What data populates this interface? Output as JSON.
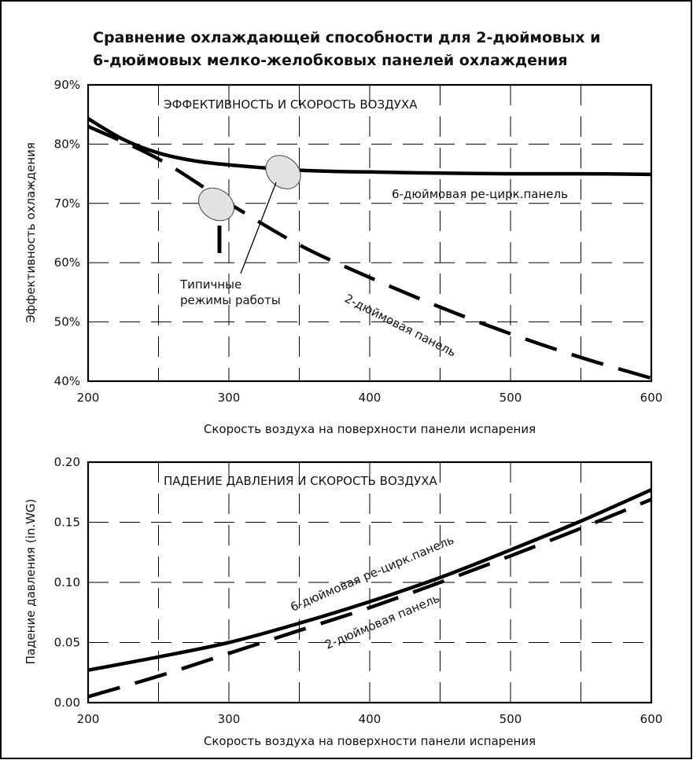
{
  "title_line1": "Сравнение охлаждающей способности для 2-дюймовых и",
  "title_line2": "6-дюймовых мелко-желобковых панелей охлаждения",
  "chart_data": [
    {
      "type": "line",
      "inner_title": "ЭФФЕКТИВНОСТЬ И СКОРОСТЬ ВОЗДУХА",
      "xlabel": "Скорость воздуха на поверхности панели испарения",
      "ylabel": "Эффективность охлаждения",
      "xlim": [
        200,
        600
      ],
      "ylim": [
        40,
        90
      ],
      "x_ticks": [
        "200",
        "300",
        "400",
        "500",
        "600"
      ],
      "y_ticks": [
        "40%",
        "50%",
        "60%",
        "70%",
        "80%",
        "90%"
      ],
      "grid": true,
      "series": [
        {
          "name": "6-дюймовая ре-цирк.панель",
          "style": "solid",
          "x": [
            200,
            225,
            250,
            275,
            300,
            325,
            350,
            375,
            400,
            450,
            500,
            550,
            600
          ],
          "y": [
            84.3,
            80.8,
            78.5,
            77.2,
            76.5,
            76.0,
            75.6,
            75.4,
            75.3,
            75.1,
            75.0,
            75.0,
            74.9
          ]
        },
        {
          "name": "2-дюймовая панель",
          "style": "dashed",
          "x": [
            200,
            250,
            300,
            350,
            400,
            450,
            500,
            550,
            600
          ],
          "y": [
            83.0,
            77.5,
            70.0,
            63.0,
            57.5,
            52.5,
            48.0,
            44.0,
            40.5
          ]
        }
      ],
      "annotations": [
        "Типичные",
        "режимы работы"
      ]
    },
    {
      "type": "line",
      "inner_title": "ПАДЕНИЕ ДАВЛЕНИЯ И СКОРОСТЬ ВОЗДУХА",
      "xlabel": "Скорость воздуха на поверхности панели испарения",
      "ylabel": "Падение давления (in.WG)",
      "xlim": [
        200,
        600
      ],
      "ylim": [
        0.0,
        0.2
      ],
      "x_ticks": [
        "200",
        "300",
        "400",
        "500",
        "600"
      ],
      "y_ticks": [
        "0.00",
        "0.05",
        "0.10",
        "0.15",
        "0.20"
      ],
      "grid": true,
      "series": [
        {
          "name": "6-дюймовая ре-цирк.панель",
          "style": "solid",
          "x": [
            200,
            250,
            300,
            350,
            400,
            450,
            500,
            550,
            600
          ],
          "y": [
            0.027,
            0.038,
            0.05,
            0.066,
            0.084,
            0.104,
            0.127,
            0.151,
            0.177
          ]
        },
        {
          "name": "2-дюймовая панель",
          "style": "dashed",
          "x": [
            200,
            250,
            300,
            350,
            400,
            450,
            500,
            550,
            600
          ],
          "y": [
            0.005,
            0.022,
            0.041,
            0.06,
            0.079,
            0.1,
            0.122,
            0.145,
            0.169
          ]
        }
      ]
    }
  ]
}
